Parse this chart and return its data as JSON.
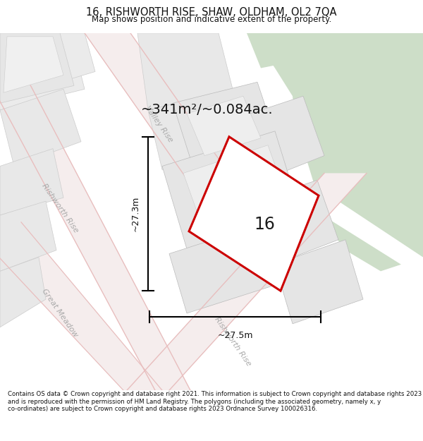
{
  "title_line1": "16, RISHWORTH RISE, SHAW, OLDHAM, OL2 7QA",
  "title_line2": "Map shows position and indicative extent of the property.",
  "area_text": "~341m²/~0.084ac.",
  "label_number": "16",
  "dim_vertical": "~27.3m",
  "dim_horizontal": "~27.5m",
  "footer": "Contains OS data © Crown copyright and database right 2021. This information is subject to Crown copyright and database rights 2023 and is reproduced with the permission of HM Land Registry. The polygons (including the associated geometry, namely x, y co-ordinates) are subject to Crown copyright and database rights 2023 Ordnance Survey 100026316.",
  "map_bg": "#ffffff",
  "block_fill": "#e8e8e8",
  "block_edge": "#cccccc",
  "green_fill": "#cddec8",
  "green_edge": "none",
  "road_fill": "#f5eded",
  "road_edge_color": "#e8bebe",
  "plot_fill": "#ffffff",
  "plot_edge": "#cc0000",
  "street_color": "#aaaaaa",
  "dim_color": "#111111",
  "text_color": "#111111",
  "footer_color": "#111111"
}
